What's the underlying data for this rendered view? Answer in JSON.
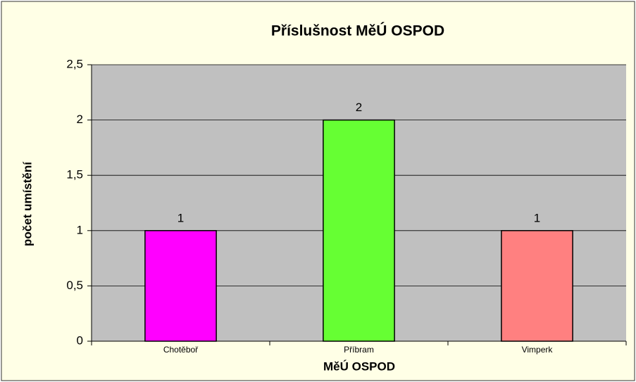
{
  "chart_data": {
    "type": "bar",
    "title": "Příslušnost MěÚ OSPOD",
    "ylabel": "počet umístění",
    "xlabel": "MěÚ OSPOD",
    "categories": [
      "Chotěboř",
      "Příbram",
      "Vimperk"
    ],
    "values": [
      1,
      2,
      1
    ],
    "colors": [
      "#ff00ff",
      "#66ff33",
      "#ff8080"
    ],
    "ylim": [
      0,
      2.5
    ],
    "yticks": [
      0,
      {
        "value": 0.5,
        "label": "0,5"
      },
      1,
      {
        "value": 1.5,
        "label": "1,5"
      },
      2,
      {
        "value": 2.5,
        "label": "2,5"
      }
    ],
    "grid": true
  }
}
